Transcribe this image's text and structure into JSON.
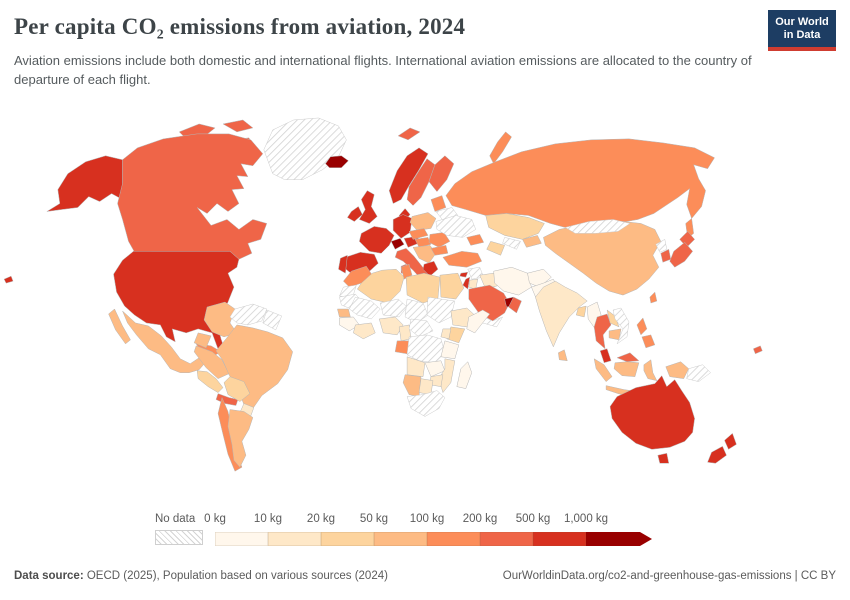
{
  "header": {
    "title": "Per capita CO₂ emissions from aviation, 2024",
    "subtitle": "Aviation emissions include both domestic and international flights. International aviation emissions are allocated to the country of departure of each flight.",
    "logo": {
      "line1": "Our World",
      "line2": "in Data",
      "bg_color": "#1d3d63",
      "bar_color": "#cf3c30"
    }
  },
  "legend": {
    "no_data_label": "No data",
    "tick_labels": [
      "0 kg",
      "10 kg",
      "20 kg",
      "50 kg",
      "100 kg",
      "200 kg",
      "500 kg",
      "1,000 kg"
    ]
  },
  "footer": {
    "source_label": "Data source:",
    "source_text": " OECD (2025), Population based on various sources (2024)",
    "attribution": "OurWorldinData.org/co2-and-greenhouse-gas-emissions | CC BY"
  },
  "chart_data": {
    "type": "choropleth_world_map",
    "title": "Per capita CO₂ emissions from aviation, 2024",
    "unit": "kg CO₂ per person",
    "legend_position": "bottom",
    "no_data_style": "gray diagonal hatch",
    "legend_bins": [
      {
        "label": "0-10",
        "min": 0,
        "max": 10,
        "color": "#fff7ec"
      },
      {
        "label": "10-20",
        "min": 10,
        "max": 20,
        "color": "#fee8c8"
      },
      {
        "label": "20-50",
        "min": 20,
        "max": 50,
        "color": "#fdd49e"
      },
      {
        "label": "50-100",
        "min": 50,
        "max": 100,
        "color": "#fdbb84"
      },
      {
        "label": "100-200",
        "min": 100,
        "max": 200,
        "color": "#fc8d59"
      },
      {
        "label": "200-500",
        "min": 200,
        "max": 500,
        "color": "#ef6548"
      },
      {
        "label": "500-1000",
        "min": 500,
        "max": 1000,
        "color": "#d7301f"
      },
      {
        "label": "1000+",
        "min": 1000,
        "max": null,
        "color": "#990000"
      }
    ],
    "countries": {
      "greenland": "no-data",
      "iceland": "1000+",
      "svalbard": "200-500",
      "novaya-zemlya": "100-200",
      "canada-arctic-1": "200-500",
      "canada-arctic-2": "200-500",
      "canada-baffin": "200-500",
      "alaska": "500-1000",
      "usa": "500-1000",
      "hawaii": "500-1000",
      "canada": "200-500",
      "mexico-baja": "50-100",
      "mexico": "50-100",
      "central-america": "20-50",
      "panama-costa-rica": "200-500",
      "cuba": "100-200",
      "jamaica": "100-200",
      "hispaniola": "50-100",
      "puerto-rico": "200-500",
      "lesser-antilles": "100-200",
      "colombia": "50-100",
      "venezuela": "no-data",
      "guyanas": "no-data",
      "ecuador": "50-100",
      "peru": "50-100",
      "brazil": "50-100",
      "bolivia": "20-50",
      "paraguay": "10-20",
      "chile": "100-200",
      "argentina": "50-100",
      "norway": "500-1000",
      "sweden": "200-500",
      "finland": "200-500",
      "denmark": "500-1000",
      "uk": "500-1000",
      "ireland": "500-1000",
      "france": "500-1000",
      "spain": "500-1000",
      "portugal": "500-1000",
      "germany": "500-1000",
      "switzerland": "1000+",
      "austria-region": "500-1000",
      "italy": "200-500",
      "sicily": "200-500",
      "sardinia": "200-500",
      "poland": "50-100",
      "czech-slovakia": "100-200",
      "hungary": "100-200",
      "balkans": "50-100",
      "greece": "500-1000",
      "romania": "100-200",
      "bulgaria": "100-200",
      "baltics": "100-200",
      "belarus": "no-data",
      "ukraine": "no-data",
      "russia": "100-200",
      "sakhalin": "100-200",
      "kazakhstan": "20-50",
      "uzbekistan": "no-data",
      "turkmenistan": "20-50",
      "kyrgyzstan": "50-100",
      "caucasus": "100-200",
      "turkey": "100-200",
      "cyprus": "500-1000",
      "syria": "no-data",
      "iraq": "10-20",
      "iran": "0-10",
      "afghanistan": "0-10",
      "pakistan": "0-10",
      "israel-lebanon": "500-1000",
      "jordan": "10-20",
      "saudi-arabia": "200-500",
      "uae-qatar": "1000+",
      "oman": "200-500",
      "yemen": "no-data",
      "india": "10-20",
      "bangladesh": "20-50",
      "sri-lanka": "50-100",
      "china": "50-100",
      "mongolia": "no-data",
      "north-korea": "no-data",
      "south-korea": "200-500",
      "japan-hokkaido": "200-500",
      "japan-honshu": "200-500",
      "taiwan": "100-200",
      "myanmar": "0-10",
      "thailand": "200-500",
      "laos": "20-50",
      "cambodia": "50-100",
      "vietnam": "no-data",
      "malaysia": "500-1000",
      "sumatra": "50-100",
      "java": "50-100",
      "borneo-malaysia": "200-500",
      "borneo-indonesia": "50-100",
      "sulawesi": "50-100",
      "philippines-luzon": "100-200",
      "philippines-south": "100-200",
      "papua-indonesia": "50-100",
      "papua-new-guinea": "no-data",
      "new-caledonia": "200-500",
      "australia": "500-1000",
      "tasmania": "500-1000",
      "nz-north": "500-1000",
      "nz-south": "500-1000",
      "morocco": "100-200",
      "western-sahara": "no-data",
      "algeria": "20-50",
      "tunisia": "100-200",
      "libya": "20-50",
      "egypt": "20-50",
      "mauritania": "no-data",
      "mali": "no-data",
      "niger": "no-data",
      "chad": "no-data",
      "sudan": "no-data",
      "senegal-gambia": "50-100",
      "guinea-region": "0-10",
      "ivory-ghana": "10-20",
      "nigeria": "10-20",
      "cameroon": "10-20",
      "car": "no-data",
      "gabon-region": "100-200",
      "ethiopia": "10-20",
      "somalia": "0-10",
      "kenya": "20-50",
      "uganda": "10-20",
      "drc": "no-data",
      "tanzania": "0-10",
      "angola": "10-20",
      "zambia": "0-10",
      "mozambique": "10-20",
      "zimbabwe": "10-20",
      "namibia": "50-100",
      "botswana": "10-20",
      "south-africa": "no-data",
      "madagascar": "0-10"
    }
  }
}
